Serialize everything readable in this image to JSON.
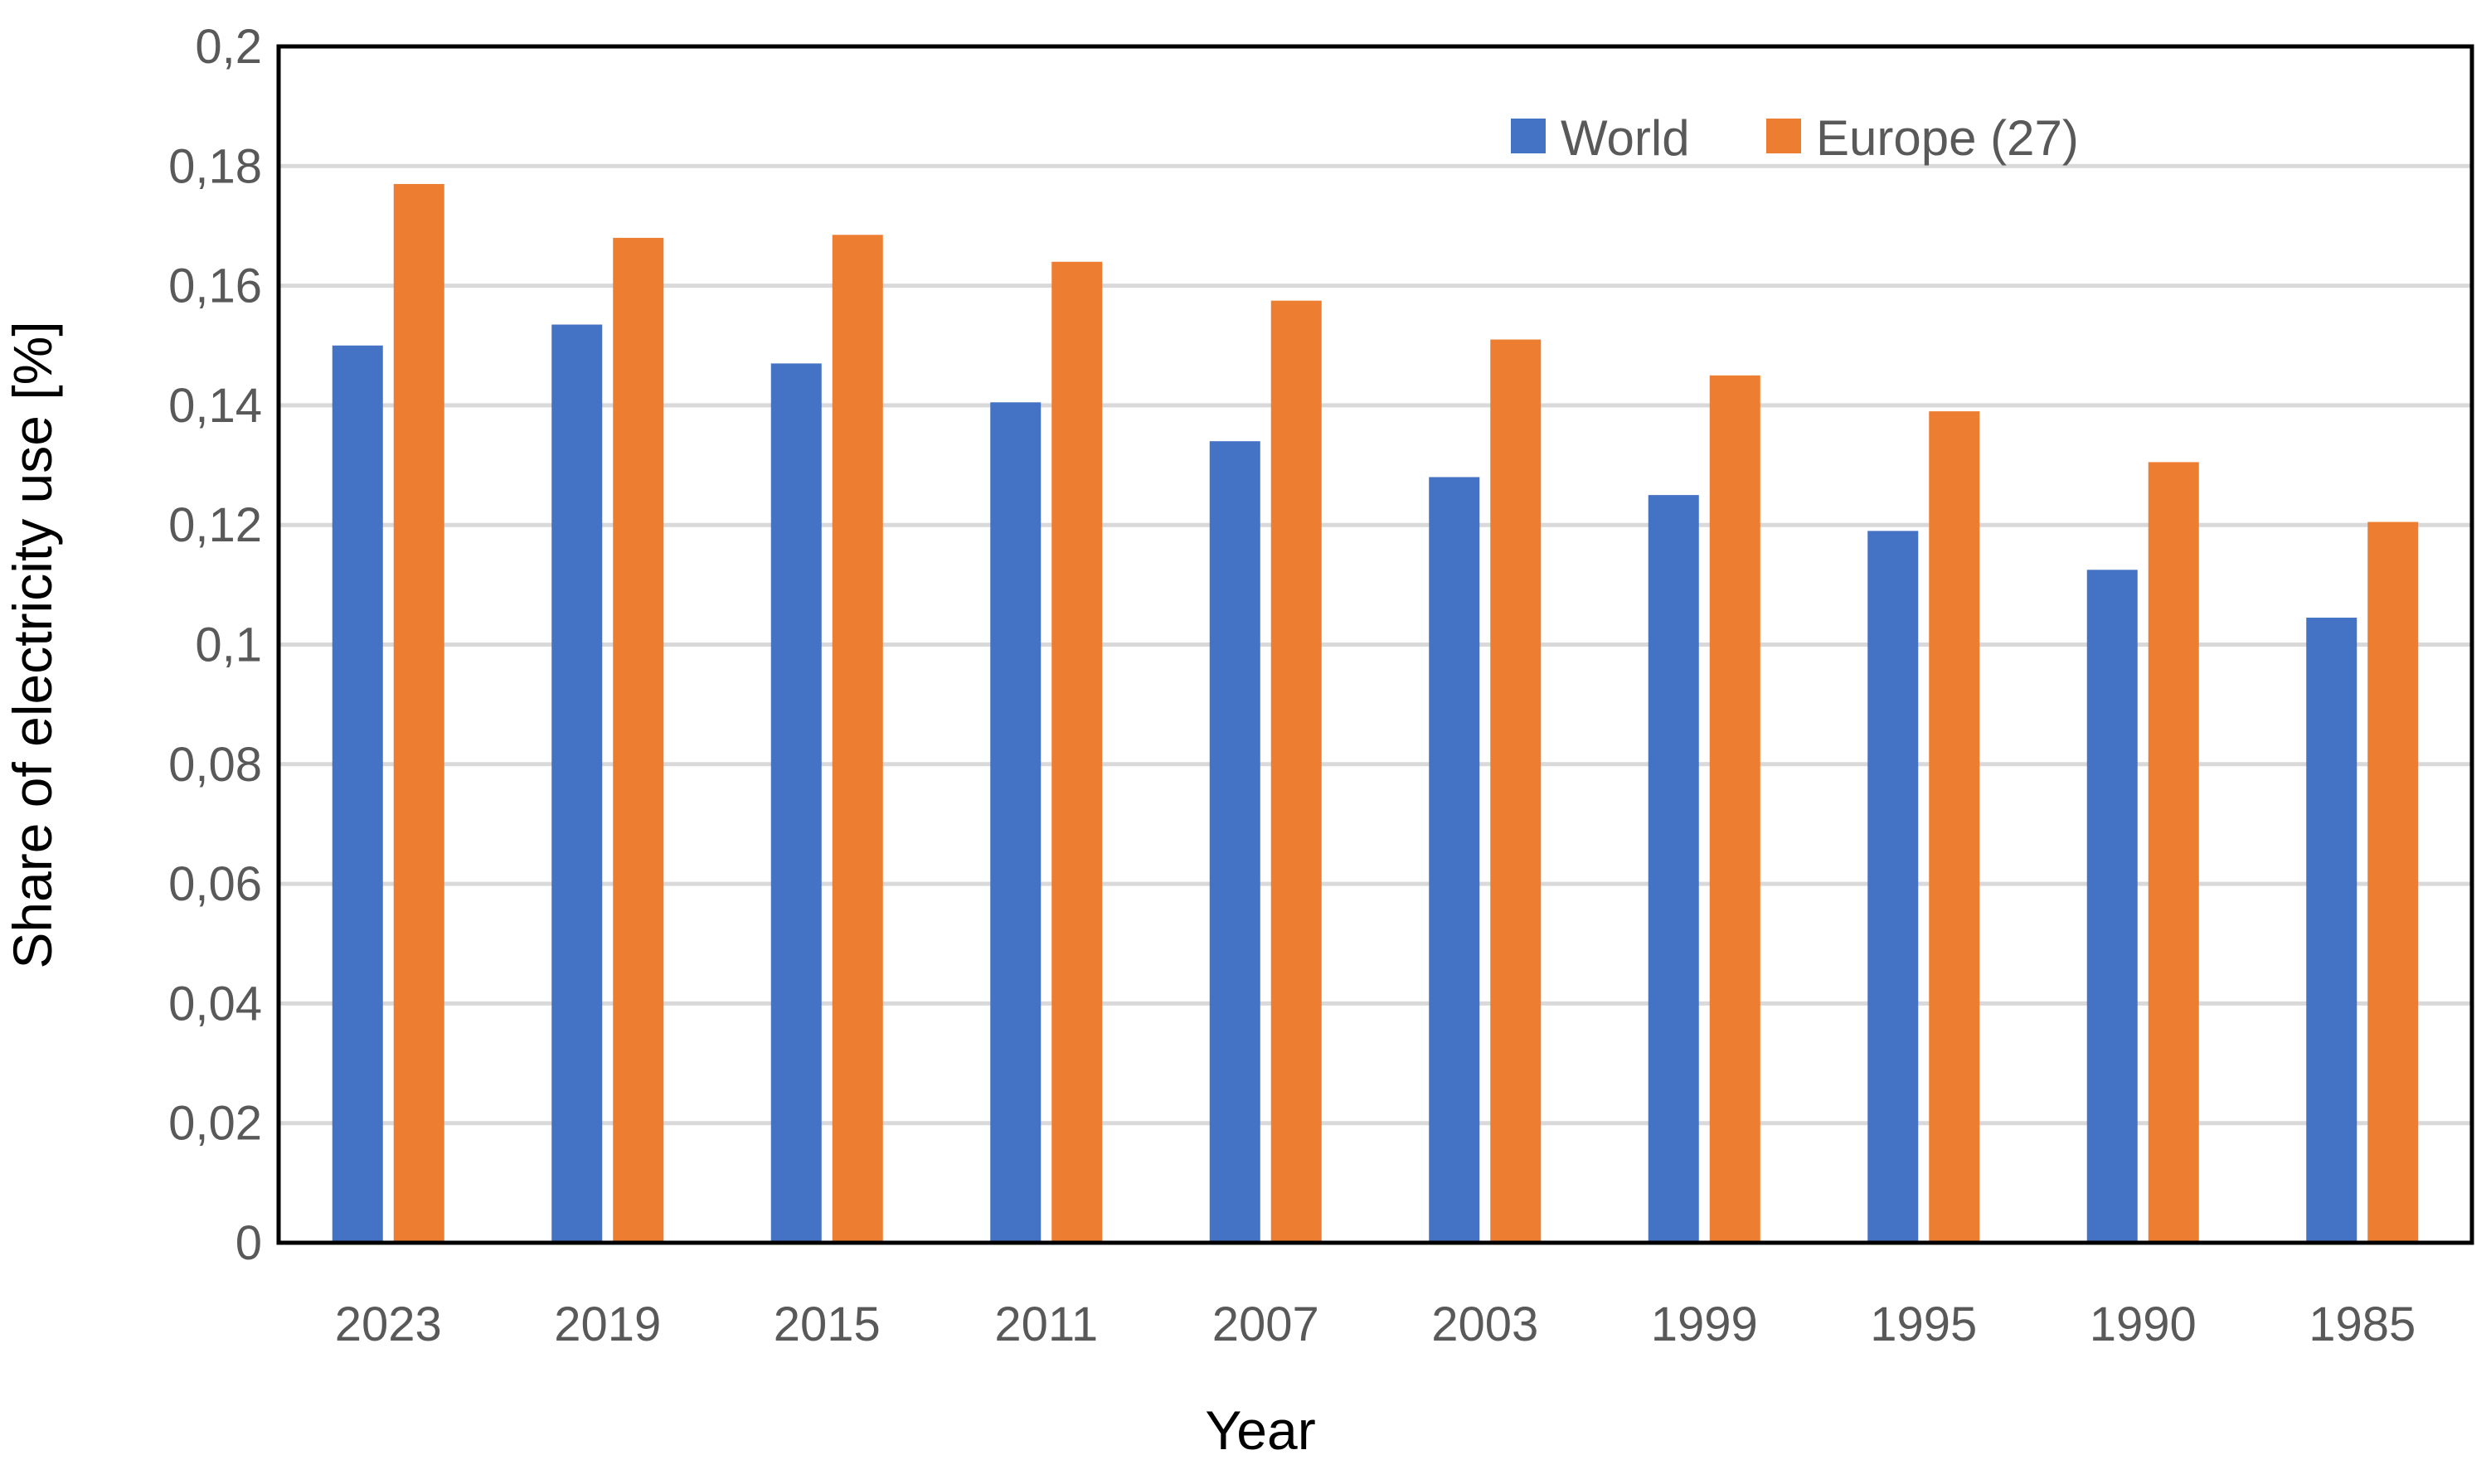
{
  "chart_data": {
    "type": "bar",
    "title": "",
    "xlabel": "Year",
    "ylabel": "Share of electricity use [%]",
    "categories": [
      "2023",
      "2019",
      "2015",
      "2011",
      "2007",
      "2003",
      "1999",
      "1995",
      "1990",
      "1985"
    ],
    "series": [
      {
        "name": "World",
        "color": "#4472C4",
        "values": [
          0.15,
          0.1535,
          0.147,
          0.1405,
          0.134,
          0.128,
          0.125,
          0.119,
          0.1125,
          0.1045
        ]
      },
      {
        "name": "Europe (27)",
        "color": "#ED7D31",
        "values": [
          0.177,
          0.168,
          0.1685,
          0.164,
          0.1575,
          0.151,
          0.145,
          0.139,
          0.1305,
          0.1205
        ]
      }
    ],
    "ylim": [
      0,
      0.2
    ],
    "yticks": [
      0,
      0.02,
      0.04,
      0.06,
      0.08,
      0.1,
      0.12,
      0.14,
      0.16,
      0.18,
      0.2
    ],
    "ytick_labels": [
      "0",
      "0,02",
      "0,04",
      "0,06",
      "0,08",
      "0,1",
      "0,12",
      "0,14",
      "0,16",
      "0,18",
      "0,2"
    ],
    "grid": true,
    "legend_position": "top-right"
  }
}
